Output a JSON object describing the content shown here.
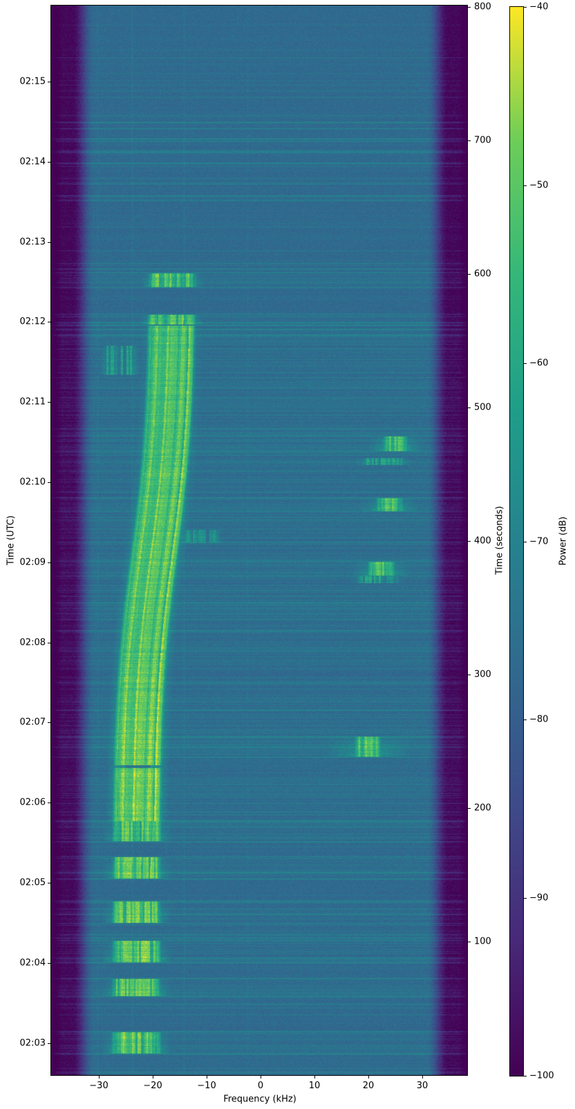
{
  "figure": {
    "background": "#ffffff"
  },
  "chart_data": {
    "type": "heatmap",
    "subtype": "spectrogram-waterfall",
    "title": "",
    "xlabel": "Frequency (kHz)",
    "ylabel_left": "Time (UTC)",
    "ylabel_right": "Time (seconds)",
    "colorbar_label": "Power (dB)",
    "colormap": "viridis",
    "power_range_db": [
      -100,
      -40
    ],
    "colorbar_ticks_db": [
      -40,
      -50,
      -60,
      -70,
      -80,
      -90,
      -100
    ],
    "freq_axis": {
      "range_khz": [
        -38.8,
        38.3
      ],
      "ticks_khz": [
        -30,
        -20,
        -10,
        0,
        10,
        20,
        30
      ]
    },
    "time_axis": {
      "range_s": [
        0,
        801
      ],
      "right_ticks_s": [
        800,
        700,
        600,
        500,
        400,
        300,
        200,
        100
      ],
      "utc_ticks": [
        {
          "label": "02:15",
          "t_s": 744
        },
        {
          "label": "02:14",
          "t_s": 684
        },
        {
          "label": "02:13",
          "t_s": 624
        },
        {
          "label": "02:12",
          "t_s": 564
        },
        {
          "label": "02:11",
          "t_s": 504
        },
        {
          "label": "02:10",
          "t_s": 444
        },
        {
          "label": "02:09",
          "t_s": 384
        },
        {
          "label": "02:08",
          "t_s": 324
        },
        {
          "label": "02:07",
          "t_s": 264
        },
        {
          "label": "02:06",
          "t_s": 204
        },
        {
          "label": "02:05",
          "t_s": 144
        },
        {
          "label": "02:04",
          "t_s": 84
        },
        {
          "label": "02:03",
          "t_s": 24
        }
      ]
    },
    "background_noise": {
      "floor_db": -77.5,
      "noise_amp_db": 2.6,
      "edge_rolloff": {
        "start_khz": 30.8,
        "full_khz": 34.8,
        "depth_db": 22
      }
    },
    "carriers": [
      {
        "f_khz": -30.1,
        "boost_db": 1.5
      },
      {
        "f_khz": -23.7,
        "boost_db": 2.2
      },
      {
        "f_khz": -14.1,
        "boost_db": 2.0
      },
      {
        "f_khz": -2.3,
        "boost_db": 1.2
      }
    ],
    "doppler_track": {
      "f_mid_khz": -19.6,
      "f_swing_khz": 3.4,
      "t_inflection_s": 390,
      "tau_s": 105
    },
    "signals": [
      {
        "name": "burst",
        "t0_s": 17,
        "t1_s": 32,
        "f_center_khz": "doppler",
        "bandwidth_khz": 8.1,
        "peak_db": -49,
        "pedestal_khz": 2.5
      },
      {
        "name": "burst",
        "t0_s": 60,
        "t1_s": 72,
        "f_center_khz": "doppler",
        "bandwidth_khz": 8.1,
        "peak_db": -49,
        "pedestal_khz": 2.5
      },
      {
        "name": "burst",
        "t0_s": 85,
        "t1_s": 100,
        "f_center_khz": "doppler",
        "bandwidth_khz": 8.1,
        "peak_db": -49,
        "pedestal_khz": 2.5
      },
      {
        "name": "burst",
        "t0_s": 115,
        "t1_s": 130,
        "f_center_khz": "doppler",
        "bandwidth_khz": 8.1,
        "peak_db": -49,
        "pedestal_khz": 2.5
      },
      {
        "name": "burst",
        "t0_s": 148,
        "t1_s": 163,
        "f_center_khz": "doppler",
        "bandwidth_khz": 8.1,
        "peak_db": -49,
        "pedestal_khz": 2.5
      },
      {
        "name": "burst",
        "t0_s": 176,
        "t1_s": 190,
        "f_center_khz": "doppler",
        "bandwidth_khz": 8.1,
        "peak_db": -49,
        "pedestal_khz": 2.5
      },
      {
        "name": "main-pass",
        "t0_s": 191,
        "t1_s": 561,
        "f_center_khz": "doppler",
        "bandwidth_khz": 8.1,
        "peak_db": -49,
        "pedestal_khz": 1.8,
        "dropout_t_s": 231
      },
      {
        "name": "burst",
        "t0_s": 563,
        "t1_s": 569,
        "f_center_khz": "doppler",
        "bandwidth_khz": 8.1,
        "peak_db": -50,
        "pedestal_khz": 2.0
      },
      {
        "name": "burst",
        "t0_s": 591,
        "t1_s": 600,
        "f_center_khz": "doppler",
        "bandwidth_khz": 7.9,
        "peak_db": -51,
        "pedestal_khz": 2.0
      },
      {
        "name": "right-burst",
        "t0_s": 239,
        "t1_s": 253,
        "f_center_khz": 19.9,
        "bandwidth_khz": 3.9,
        "peak_db": -51,
        "pedestal_khz": 6.0
      },
      {
        "name": "right-burst",
        "t0_s": 369,
        "t1_s": 374,
        "f_center_khz": 21.8,
        "bandwidth_khz": 6.5,
        "peak_db": -62,
        "pedestal_khz": 2.0
      },
      {
        "name": "right-burst",
        "t0_s": 375,
        "t1_s": 384,
        "f_center_khz": 22.4,
        "bandwidth_khz": 4.0,
        "peak_db": -52,
        "pedestal_khz": 3.5
      },
      {
        "name": "right-burst",
        "t0_s": 423,
        "t1_s": 432,
        "f_center_khz": 23.9,
        "bandwidth_khz": 4.0,
        "peak_db": -52,
        "pedestal_khz": 3.5
      },
      {
        "name": "right-burst",
        "t0_s": 458,
        "t1_s": 462,
        "f_center_khz": 22.8,
        "bandwidth_khz": 7.0,
        "peak_db": -63,
        "pedestal_khz": 2.0
      },
      {
        "name": "right-burst",
        "t0_s": 468,
        "t1_s": 478,
        "f_center_khz": 25.0,
        "bandwidth_khz": 3.8,
        "peak_db": -52,
        "pedestal_khz": 3.5
      },
      {
        "name": "faint-patch",
        "t0_s": 525,
        "t1_s": 546,
        "f_center_khz": -26.0,
        "bandwidth_khz": 5.5,
        "peak_db": -64,
        "pedestal_khz": 1.0
      },
      {
        "name": "faint-patch",
        "t0_s": 399,
        "t1_s": 408,
        "f_center_khz": -11.0,
        "bandwidth_khz": 6.0,
        "peak_db": -67,
        "pedestal_khz": 1.0
      }
    ],
    "noise_seed": 1337
  }
}
